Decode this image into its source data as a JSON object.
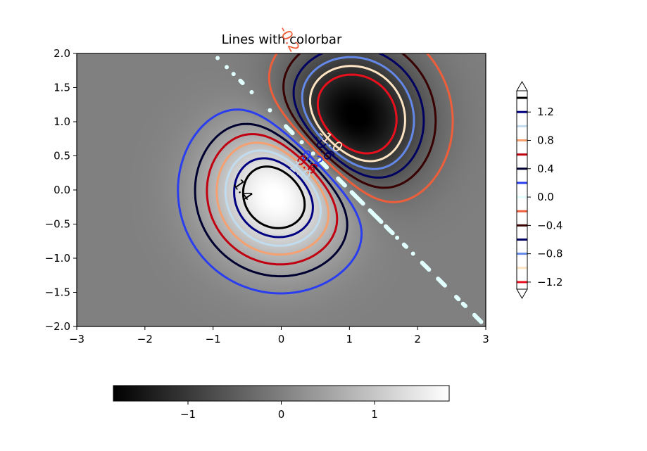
{
  "chart_data": {
    "type": "contour",
    "title": "Lines with colorbar",
    "xlabel": "",
    "ylabel": "",
    "xlim": [
      -3,
      3
    ],
    "ylim": [
      -2,
      2
    ],
    "x_ticks": [
      -3,
      -2,
      -1,
      0,
      1,
      2,
      3
    ],
    "x_tick_labels": [
      "−3",
      "−2",
      "−1",
      "0",
      "1",
      "2",
      "3"
    ],
    "y_ticks": [
      -2,
      -1.5,
      -1,
      -0.5,
      0,
      0.5,
      1,
      1.5,
      2
    ],
    "y_tick_labels": [
      "−2.0",
      "−1.5",
      "−1.0",
      "−0.5",
      "0.0",
      "0.5",
      "1.0",
      "1.5",
      "2.0"
    ],
    "grid": false,
    "background_image": {
      "colormap": "gray",
      "positive_peak": {
        "x": 0,
        "y": 0,
        "value": 1.4
      },
      "negative_peak": {
        "x": 1,
        "y": 1,
        "value": -1.4
      }
    },
    "contour_levels": [
      -1.2,
      -1.0,
      -0.8,
      -0.6,
      -0.4,
      -0.2,
      0.0,
      0.2,
      0.4,
      0.6,
      0.8,
      1.0,
      1.2,
      1.4
    ],
    "contour_colors": [
      "#e8101c",
      "#fee4c2",
      "#6388e8",
      "#000060",
      "#380000",
      "#ee5e3a",
      "#e0fffe",
      "#2a3ef0",
      "#000030",
      "#c00010",
      "#f4a071",
      "#c1dcee",
      "#000080",
      "#000000"
    ],
    "contour_labels": [
      {
        "text": "-0.2",
        "level": -0.2
      },
      {
        "text": "-0.6",
        "level": -0.6
      },
      {
        "text": "-1.0",
        "level": -1.0
      },
      {
        "text": "0.2",
        "level": 0.2
      },
      {
        "text": "0.6",
        "level": 0.6
      },
      {
        "text": "1.0",
        "level": 1.0
      },
      {
        "text": "1.4",
        "level": 1.4
      }
    ],
    "colorbar_vertical": {
      "ticks": [
        1.2,
        0.8,
        0.4,
        0.0,
        -0.4,
        -0.8,
        -1.2
      ],
      "tick_labels": [
        "1.2",
        "0.8",
        "0.4",
        "0.0",
        "−0.4",
        "−0.8",
        "−1.2"
      ],
      "extend": "both",
      "range": [
        -1.3,
        1.5
      ]
    },
    "colorbar_horizontal": {
      "ticks": [
        -1,
        0,
        1
      ],
      "tick_labels": [
        "−1",
        "0",
        "1"
      ],
      "range": [
        -1.8,
        1.8
      ],
      "colormap": "gray"
    }
  }
}
